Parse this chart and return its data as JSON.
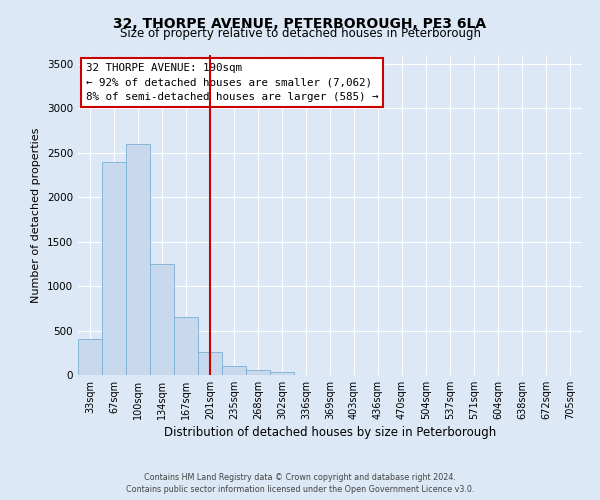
{
  "title": "32, THORPE AVENUE, PETERBOROUGH, PE3 6LA",
  "subtitle": "Size of property relative to detached houses in Peterborough",
  "xlabel": "Distribution of detached houses by size in Peterborough",
  "ylabel": "Number of detached properties",
  "bar_labels": [
    "33sqm",
    "67sqm",
    "100sqm",
    "134sqm",
    "167sqm",
    "201sqm",
    "235sqm",
    "268sqm",
    "302sqm",
    "336sqm",
    "369sqm",
    "403sqm",
    "436sqm",
    "470sqm",
    "504sqm",
    "537sqm",
    "571sqm",
    "604sqm",
    "638sqm",
    "672sqm",
    "705sqm"
  ],
  "bar_values": [
    400,
    2400,
    2600,
    1250,
    650,
    260,
    100,
    55,
    30,
    0,
    0,
    0,
    0,
    0,
    0,
    0,
    0,
    0,
    0,
    0,
    0
  ],
  "bar_color": "#c8d9ee",
  "bar_edgecolor": "#7aafd4",
  "vline_x": 5,
  "vline_color": "#cc0000",
  "ylim": [
    0,
    3600
  ],
  "yticks": [
    0,
    500,
    1000,
    1500,
    2000,
    2500,
    3000,
    3500
  ],
  "annotation_title": "32 THORPE AVENUE: 190sqm",
  "annotation_line1": "← 92% of detached houses are smaller (7,062)",
  "annotation_line2": "8% of semi-detached houses are larger (585) →",
  "annotation_box_facecolor": "#ffffff",
  "annotation_box_edgecolor": "#cc0000",
  "footer_line1": "Contains HM Land Registry data © Crown copyright and database right 2024.",
  "footer_line2": "Contains public sector information licensed under the Open Government Licence v3.0.",
  "background_color": "#dce8f5",
  "grid_color": "#ffffff",
  "title_fontsize": 10,
  "subtitle_fontsize": 8.5,
  "xlabel_fontsize": 8.5,
  "ylabel_fontsize": 8,
  "tick_fontsize": 7,
  "ytick_fontsize": 7.5,
  "ann_fontsize": 7.8,
  "footer_fontsize": 5.8
}
